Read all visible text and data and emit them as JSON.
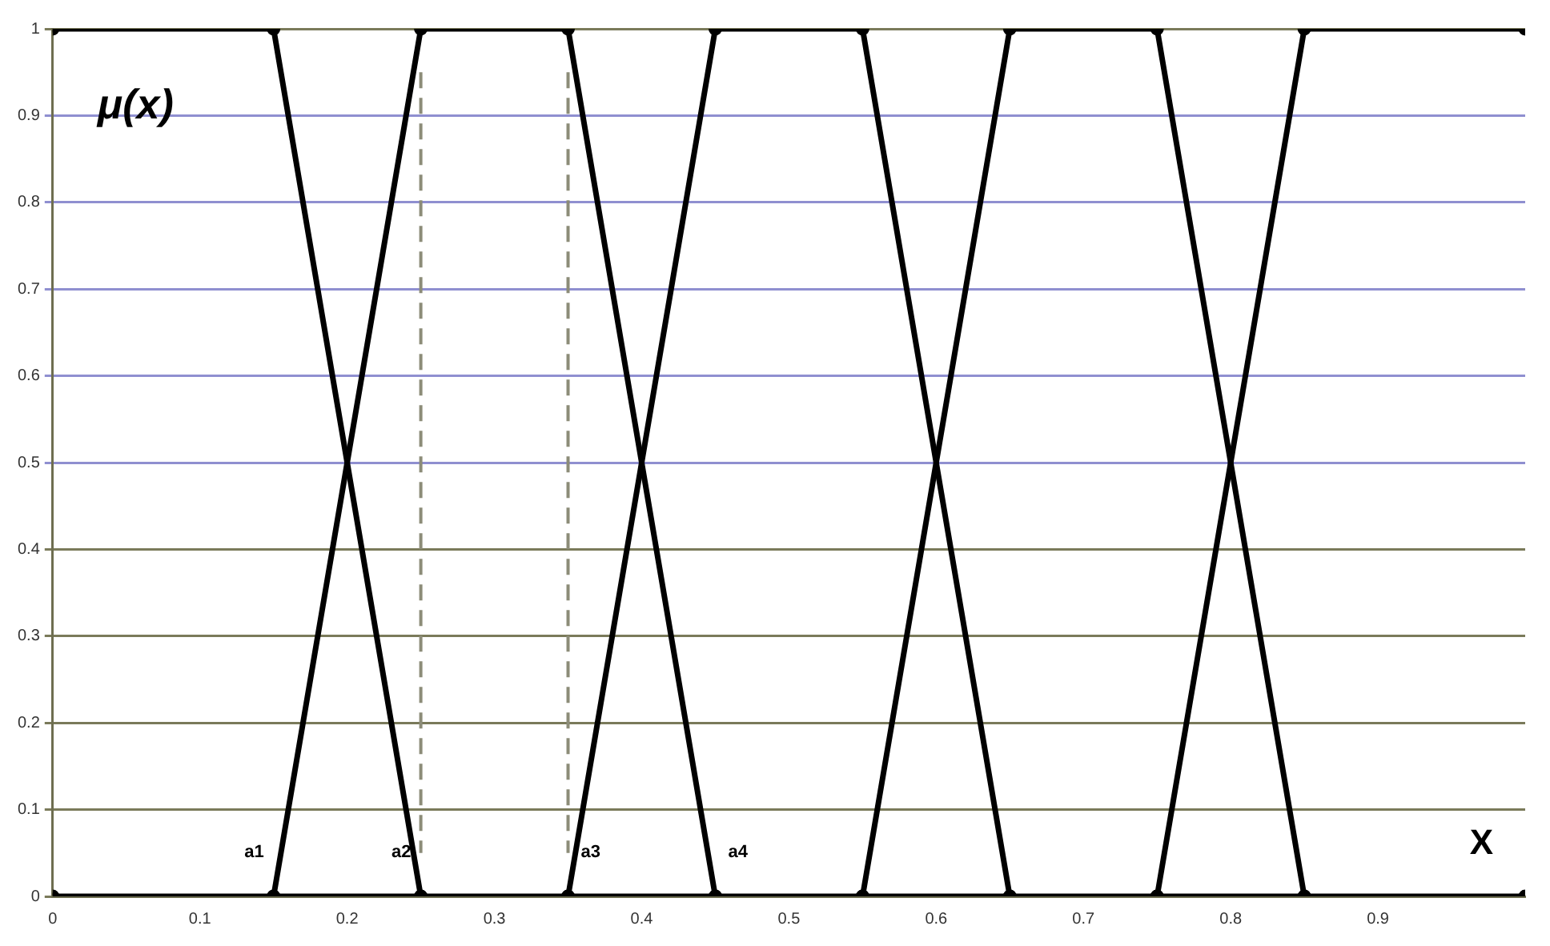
{
  "chart_data": {
    "type": "line",
    "xlabel": "X",
    "ylabel": "μ(x)",
    "xlim": [
      0,
      1
    ],
    "xticks": [
      0,
      0.1,
      0.2,
      0.3,
      0.4,
      0.5,
      0.6,
      0.7,
      0.8,
      0.9
    ],
    "ylim": [
      0,
      1
    ],
    "yticks": [
      0,
      0.1,
      0.2,
      0.3,
      0.4,
      0.5,
      0.6,
      0.7,
      0.8,
      0.9,
      1
    ],
    "grid": "y",
    "legend": false,
    "marker": "circle",
    "line_style": "solid",
    "series": [
      {
        "color": "#000000",
        "x": [
          0,
          0.15,
          0.25,
          0.35,
          0.45,
          0.55,
          0.65,
          0.75,
          0.85,
          1
        ],
        "values": [
          0,
          0,
          0,
          0,
          0,
          0,
          0,
          0,
          0,
          0
        ]
      },
      {
        "color": "#000000",
        "x": [
          0,
          0.15,
          0.25
        ],
        "values": [
          1,
          1,
          0
        ]
      },
      {
        "color": "#000000",
        "x": [
          0.15,
          0.25,
          0.35,
          0.45
        ],
        "values": [
          0,
          1,
          1,
          0
        ]
      },
      {
        "color": "#000000",
        "x": [
          0.35,
          0.45,
          0.55,
          0.65
        ],
        "values": [
          0,
          1,
          1,
          0
        ]
      },
      {
        "color": "#000000",
        "x": [
          0.55,
          0.65,
          0.75,
          0.85
        ],
        "values": [
          0,
          1,
          1,
          0
        ]
      },
      {
        "color": "#000000",
        "x": [
          0.75,
          0.85,
          1
        ],
        "values": [
          0,
          1,
          1
        ]
      }
    ],
    "ref_lines": [
      {
        "axis": "x",
        "value": 0.25,
        "color": "#8c8c78",
        "line_style": "dashed"
      },
      {
        "axis": "x",
        "value": 0.35,
        "color": "#8c8c78",
        "line_style": "dashed"
      }
    ],
    "annotations": [
      {
        "text": "a1",
        "x": 0.15,
        "y": 0
      },
      {
        "text": "a2",
        "x": 0.25,
        "y": 0
      },
      {
        "text": "a3",
        "x": 0.35,
        "y": 0
      },
      {
        "text": "a4",
        "x": 0.45,
        "y": 0
      }
    ]
  }
}
